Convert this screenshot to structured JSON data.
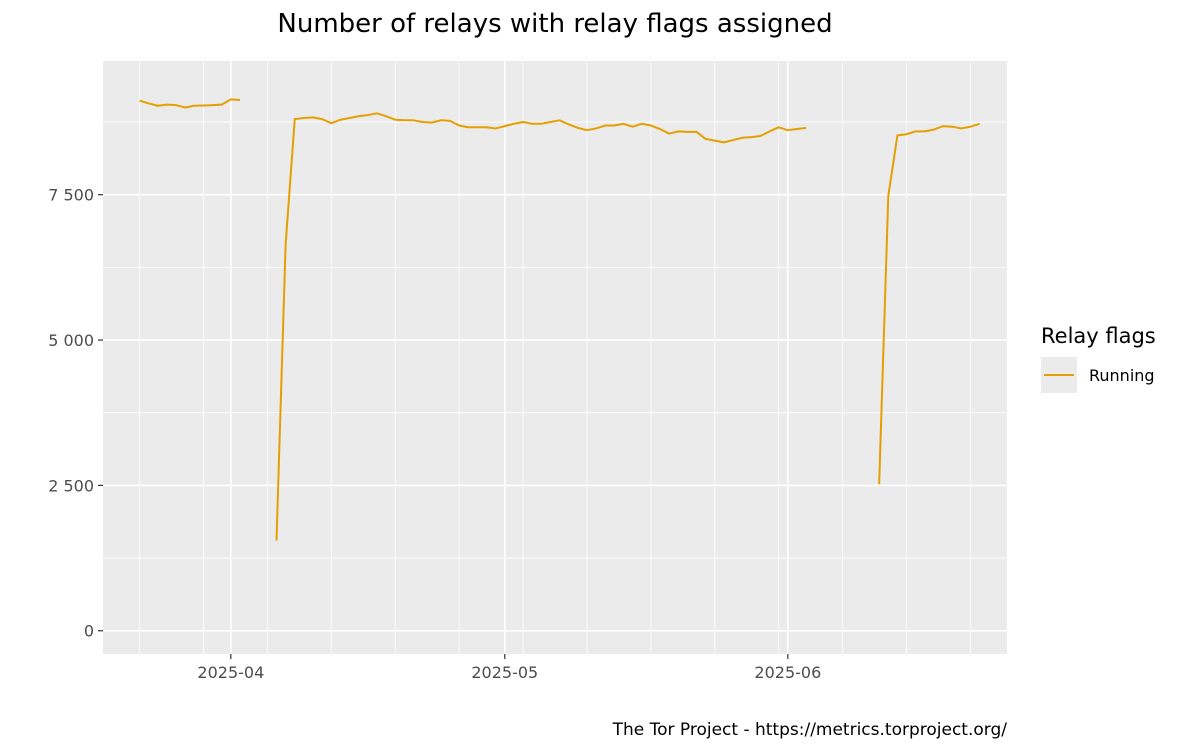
{
  "chart_data": {
    "type": "line",
    "title": "Number of relays with relay flags assigned",
    "xlabel": "",
    "ylabel": "",
    "x_axis": {
      "type": "date",
      "range": [
        "2025-03-18",
        "2025-06-25"
      ],
      "ticks": [
        {
          "value": "2025-04-01",
          "label": "2025-04"
        },
        {
          "value": "2025-05-01",
          "label": "2025-05"
        },
        {
          "value": "2025-06-01",
          "label": "2025-06"
        }
      ],
      "minor_gridlines": [
        "2025-03-22",
        "2025-03-29",
        "2025-04-05",
        "2025-04-12",
        "2025-04-19",
        "2025-04-26",
        "2025-05-03",
        "2025-05-10",
        "2025-05-17",
        "2025-05-24",
        "2025-05-31",
        "2025-06-07",
        "2025-06-14",
        "2025-06-21"
      ]
    },
    "y_axis": {
      "range": [
        -400,
        9800
      ],
      "ticks": [
        {
          "value": 0,
          "label": "0"
        },
        {
          "value": 2500,
          "label": "2 500"
        },
        {
          "value": 5000,
          "label": "5 000"
        },
        {
          "value": 7500,
          "label": "7 500"
        }
      ]
    },
    "grid": true,
    "legend": {
      "title": "Relay flags",
      "position": "right"
    },
    "caption": "The Tor Project - https://metrics.torproject.org/",
    "series": [
      {
        "name": "Running",
        "color": "#E69F00",
        "segments": [
          [
            [
              "2025-03-22",
              9120
            ],
            [
              "2025-03-23",
              9070
            ],
            [
              "2025-03-24",
              9030
            ],
            [
              "2025-03-25",
              9050
            ],
            [
              "2025-03-26",
              9040
            ],
            [
              "2025-03-27",
              9000
            ],
            [
              "2025-03-28",
              9030
            ],
            [
              "2025-03-29",
              9035
            ],
            [
              "2025-03-30",
              9040
            ],
            [
              "2025-03-31",
              9050
            ],
            [
              "2025-04-01",
              9140
            ],
            [
              "2025-04-02",
              9130
            ]
          ],
          [
            [
              "2025-04-06",
              1550
            ],
            [
              "2025-04-07",
              6650
            ],
            [
              "2025-04-08",
              8800
            ],
            [
              "2025-04-09",
              8820
            ],
            [
              "2025-04-10",
              8830
            ],
            [
              "2025-04-11",
              8800
            ],
            [
              "2025-04-12",
              8730
            ],
            [
              "2025-04-13",
              8790
            ],
            [
              "2025-04-14",
              8820
            ],
            [
              "2025-04-15",
              8850
            ],
            [
              "2025-04-16",
              8870
            ],
            [
              "2025-04-17",
              8900
            ],
            [
              "2025-04-18",
              8850
            ],
            [
              "2025-04-19",
              8790
            ],
            [
              "2025-04-20",
              8780
            ],
            [
              "2025-04-21",
              8780
            ],
            [
              "2025-04-22",
              8750
            ],
            [
              "2025-04-23",
              8740
            ],
            [
              "2025-04-24",
              8780
            ],
            [
              "2025-04-25",
              8770
            ],
            [
              "2025-04-26",
              8690
            ],
            [
              "2025-04-27",
              8660
            ],
            [
              "2025-04-28",
              8660
            ],
            [
              "2025-04-29",
              8660
            ],
            [
              "2025-04-30",
              8640
            ],
            [
              "2025-05-01",
              8680
            ],
            [
              "2025-05-02",
              8720
            ],
            [
              "2025-05-03",
              8750
            ],
            [
              "2025-05-04",
              8720
            ],
            [
              "2025-05-05",
              8720
            ],
            [
              "2025-05-06",
              8750
            ],
            [
              "2025-05-07",
              8780
            ],
            [
              "2025-05-08",
              8710
            ],
            [
              "2025-05-09",
              8650
            ],
            [
              "2025-05-10",
              8610
            ],
            [
              "2025-05-11",
              8640
            ],
            [
              "2025-05-12",
              8690
            ],
            [
              "2025-05-13",
              8690
            ],
            [
              "2025-05-14",
              8720
            ],
            [
              "2025-05-15",
              8670
            ],
            [
              "2025-05-16",
              8720
            ],
            [
              "2025-05-17",
              8690
            ],
            [
              "2025-05-18",
              8630
            ],
            [
              "2025-05-19",
              8550
            ],
            [
              "2025-05-20",
              8590
            ],
            [
              "2025-05-21",
              8580
            ],
            [
              "2025-05-22",
              8580
            ],
            [
              "2025-05-23",
              8460
            ],
            [
              "2025-05-24",
              8430
            ],
            [
              "2025-05-25",
              8400
            ],
            [
              "2025-05-26",
              8440
            ],
            [
              "2025-05-27",
              8480
            ],
            [
              "2025-05-28",
              8490
            ],
            [
              "2025-05-29",
              8510
            ],
            [
              "2025-05-30",
              8590
            ],
            [
              "2025-05-31",
              8660
            ],
            [
              "2025-06-01",
              8610
            ],
            [
              "2025-06-02",
              8630
            ],
            [
              "2025-06-03",
              8650
            ]
          ],
          [
            [
              "2025-06-11",
              2520
            ],
            [
              "2025-06-12",
              7480
            ],
            [
              "2025-06-13",
              8520
            ],
            [
              "2025-06-14",
              8540
            ],
            [
              "2025-06-15",
              8590
            ],
            [
              "2025-06-16",
              8590
            ],
            [
              "2025-06-17",
              8620
            ],
            [
              "2025-06-18",
              8680
            ],
            [
              "2025-06-19",
              8670
            ],
            [
              "2025-06-20",
              8640
            ],
            [
              "2025-06-21",
              8670
            ],
            [
              "2025-06-22",
              8720
            ]
          ]
        ]
      }
    ]
  }
}
